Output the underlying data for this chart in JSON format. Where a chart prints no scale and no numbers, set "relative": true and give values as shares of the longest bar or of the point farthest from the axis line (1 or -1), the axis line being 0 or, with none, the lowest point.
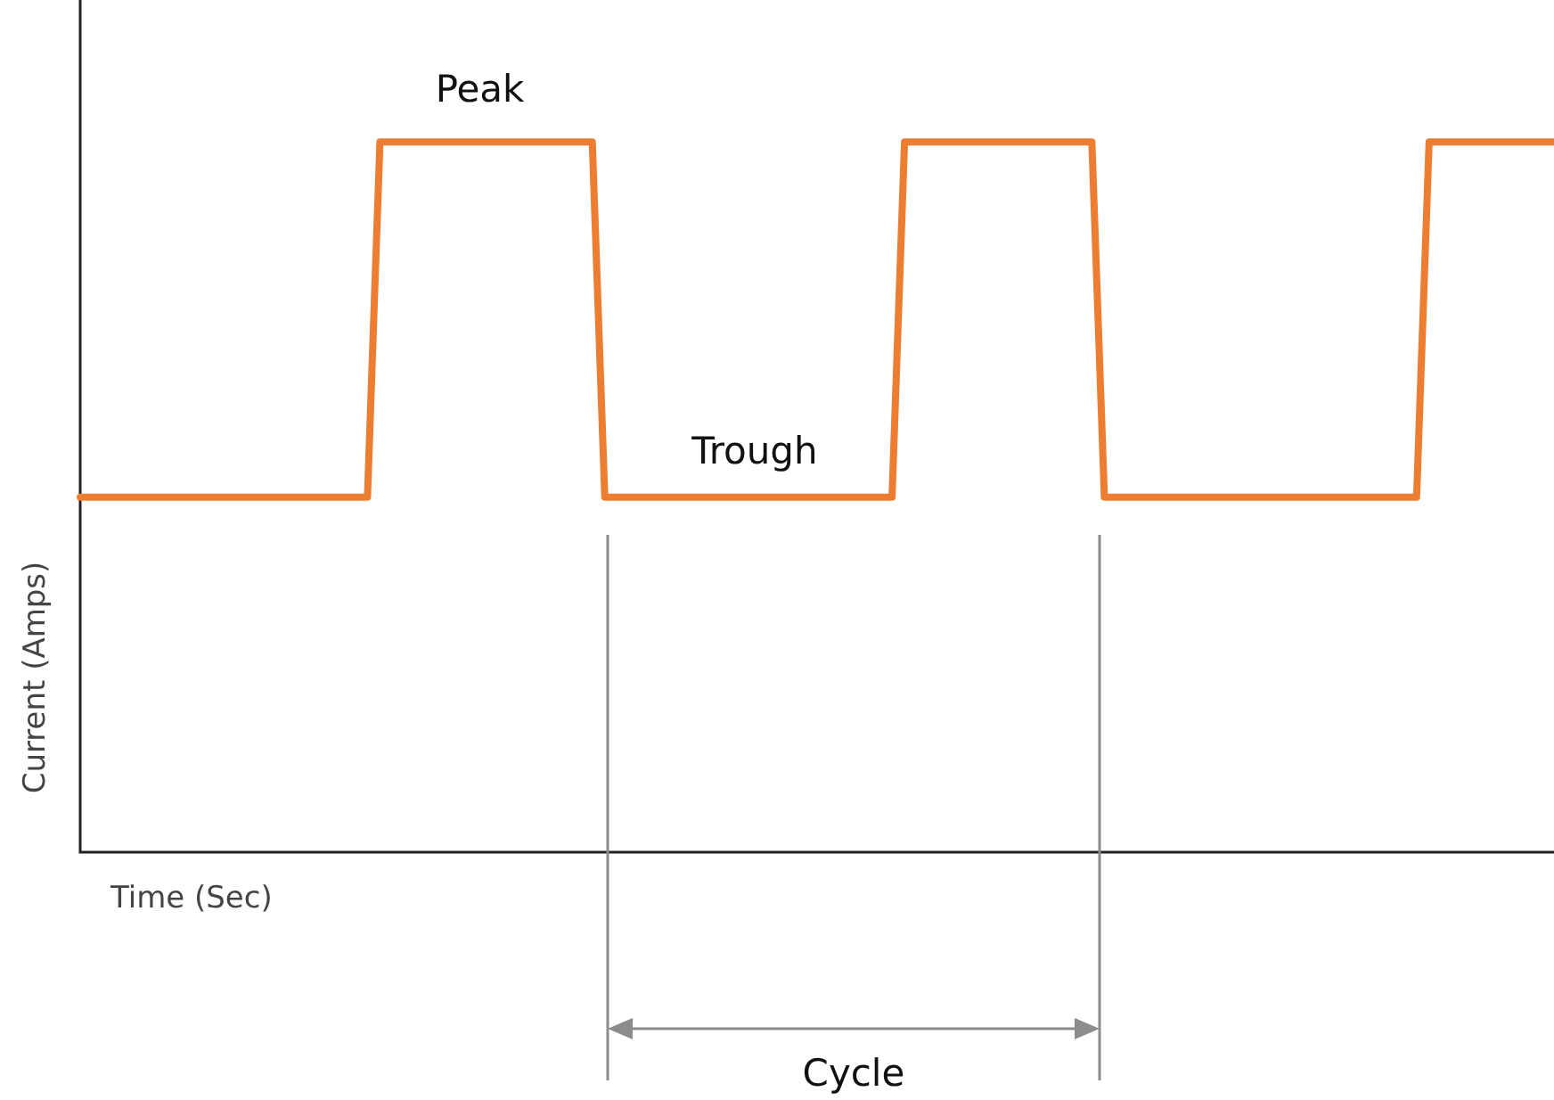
{
  "chart_data": {
    "type": "line",
    "relative": true,
    "xlabel": "Time (Sec)",
    "ylabel": "Current (Amps)",
    "annotations": [
      "Peak",
      "Trough",
      "Cycle"
    ],
    "categories": [
      null,
      null,
      null,
      null,
      null,
      null,
      null,
      null,
      null,
      null,
      null,
      null,
      null,
      null,
      null,
      null,
      null,
      null,
      null,
      null,
      null,
      null,
      null,
      null,
      null,
      null,
      null,
      null,
      null,
      null,
      null,
      null,
      null,
      null,
      null,
      null,
      null,
      null,
      null,
      null,
      null,
      null,
      null,
      null,
      null,
      null,
      null,
      null,
      null,
      null,
      null,
      null,
      null,
      null,
      null,
      null,
      null,
      null,
      null,
      null,
      null,
      null,
      null,
      null,
      null,
      null,
      null,
      null,
      null,
      null,
      null,
      null,
      null,
      null,
      null,
      null,
      null,
      null,
      null,
      null,
      null,
      null,
      null,
      null,
      null,
      null,
      null,
      null,
      null,
      null,
      null,
      null,
      null,
      null,
      null,
      null,
      null,
      null,
      null,
      null,
      null,
      null,
      null,
      null,
      null,
      null,
      null,
      null,
      null,
      null,
      null,
      null,
      null,
      null,
      null,
      null,
      null,
      null,
      null
    ],
    "series": [
      {
        "color": "#ed7d31",
        "values": [
          0.5,
          0.5,
          0.5,
          0.5,
          0.5,
          0.5,
          0.5,
          0.5,
          0.5,
          0.5,
          0.5,
          0.5,
          0.5,
          0.5,
          0.5,
          0.5,
          0.5,
          0.5,
          0.5,
          0.5,
          0.5,
          0.5,
          0.5,
          0.5,
          1,
          1,
          1,
          1,
          1,
          1,
          1,
          1,
          1,
          1,
          1,
          1,
          1,
          1,
          1,
          1,
          1,
          1,
          0.5,
          0.5,
          0.5,
          0.5,
          0.5,
          0.5,
          0.5,
          0.5,
          0.5,
          0.5,
          0.5,
          0.5,
          0.5,
          0.5,
          0.5,
          0.5,
          0.5,
          0.5,
          0.5,
          0.5,
          0.5,
          0.5,
          0.5,
          0.5,
          1,
          1,
          1,
          1,
          1,
          1,
          1,
          1,
          1,
          1,
          1,
          1,
          1,
          1,
          1,
          1,
          0.5,
          0.5,
          0.5,
          0.5,
          0.5,
          0.5,
          0.5,
          0.5,
          0.5,
          0.5,
          0.5,
          0.5,
          0.5,
          0.5,
          0.5,
          0.5,
          0.5,
          0.5,
          0.5,
          0.5,
          0.5,
          0.5,
          0.5,
          0.5,
          0.5,
          0.5,
          1,
          1,
          1,
          1,
          1,
          1,
          1,
          1,
          1,
          1,
          1
        ]
      }
    ],
    "legend": false,
    "marker": "none",
    "line_style": "solid"
  }
}
